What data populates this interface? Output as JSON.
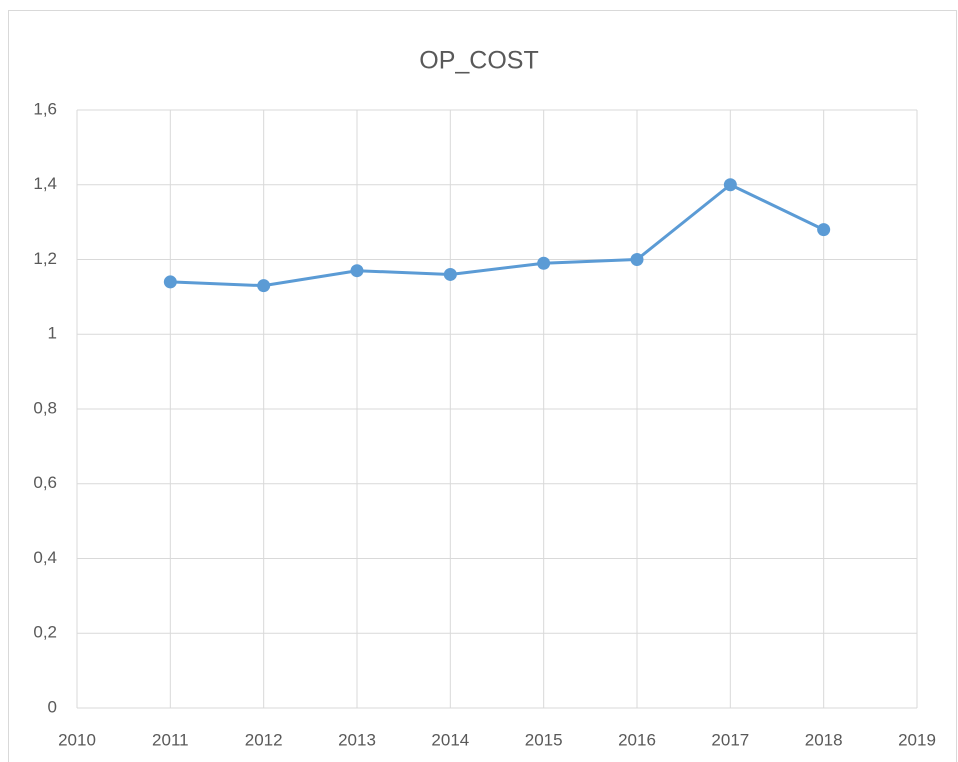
{
  "chart_data": {
    "type": "line",
    "title": "OP_COST",
    "x": [
      2011,
      2012,
      2013,
      2014,
      2015,
      2016,
      2017,
      2018
    ],
    "values": [
      1.14,
      1.13,
      1.17,
      1.16,
      1.19,
      1.2,
      1.4,
      1.28
    ],
    "color": "#5b9bd5",
    "xlim": [
      2010,
      2019
    ],
    "xticks": [
      2010,
      2011,
      2012,
      2013,
      2014,
      2015,
      2016,
      2017,
      2018,
      2019
    ],
    "ylim": [
      0,
      1.6
    ],
    "yticks": [
      0,
      {
        "value": 0.2,
        "label": "0,2"
      },
      {
        "value": 0.4,
        "label": "0,4"
      },
      {
        "value": 0.6,
        "label": "0,6"
      },
      {
        "value": 0.8,
        "label": "0,8"
      },
      1,
      {
        "value": 1.2,
        "label": "1,2"
      },
      {
        "value": 1.4,
        "label": "1,4"
      },
      {
        "value": 1.6,
        "label": "1,6"
      }
    ],
    "grid": true
  }
}
